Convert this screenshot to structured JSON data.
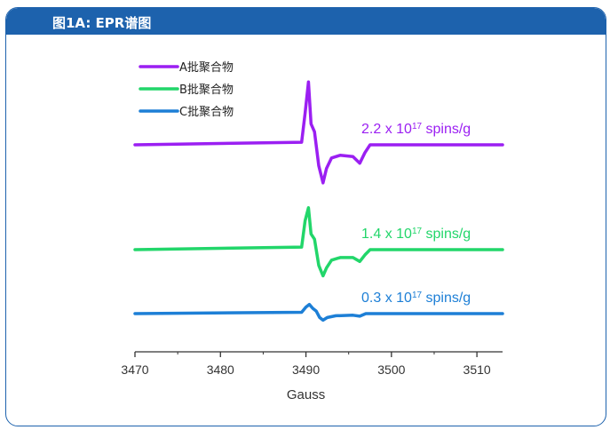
{
  "panel": {
    "title": "图1A: EPR谱图"
  },
  "colors": {
    "header": "#1d62ad",
    "axis": "#333333",
    "tick_text": "#333333"
  },
  "chart_data": {
    "type": "line",
    "title": "",
    "xlabel": "Gauss",
    "ylabel": "",
    "xlim": [
      3470,
      3513
    ],
    "xticks": [
      3470,
      3480,
      3490,
      3500,
      3510
    ],
    "xtick_labels": [
      "3470",
      "3480",
      "3490",
      "3500",
      "3510"
    ],
    "legend_position": "top-left",
    "series": [
      {
        "name": "A批聚合物",
        "color": "#9b1ff2",
        "annotation": "2.2 x 10^17 spins/g",
        "annotation_base": "2.2 x 10",
        "annotation_exp": "17",
        "annotation_unit": " spins/g",
        "x": [
          3470,
          3489.5,
          3489.9,
          3490.3,
          3490.6,
          3491.0,
          3491.5,
          3492.0,
          3492.4,
          3493.0,
          3494.0,
          3495.5,
          3496.3,
          3496.9,
          3497.5,
          3513
        ],
        "y": [
          0,
          1,
          12,
          24,
          8,
          5,
          -8,
          -14.5,
          -9,
          -5,
          -4,
          -4.5,
          -7,
          -3,
          0,
          0
        ]
      },
      {
        "name": "B批聚合物",
        "color": "#22d66a",
        "annotation": "1.4 x 10^17 spins/g",
        "annotation_base": "1.4 x 10",
        "annotation_exp": "17",
        "annotation_unit": " spins/g",
        "x": [
          3470,
          3489.5,
          3489.9,
          3490.3,
          3490.6,
          3491.0,
          3491.5,
          3492.0,
          3492.4,
          3493.0,
          3494.0,
          3495.5,
          3496.3,
          3496.9,
          3497.5,
          3513
        ],
        "y": [
          0,
          1,
          11,
          16,
          6,
          4,
          -6,
          -10,
          -7,
          -4,
          -3,
          -3,
          -4.5,
          -2,
          0,
          0
        ]
      },
      {
        "name": "C批聚合物",
        "color": "#1d7fd6",
        "annotation": "0.3 x 10^17 spins/g",
        "annotation_base": "0.3 x 10",
        "annotation_exp": "17",
        "annotation_unit": " spins/g",
        "x": [
          3470,
          3489.5,
          3490.0,
          3490.4,
          3490.8,
          3491.2,
          3491.6,
          3492.0,
          3492.5,
          3493.5,
          3495.5,
          3496.3,
          3497.0,
          3513
        ],
        "y": [
          0,
          0.5,
          2.5,
          3.5,
          2,
          1,
          -1.5,
          -2.5,
          -1.5,
          -0.8,
          -0.6,
          -1,
          0,
          0
        ]
      }
    ]
  }
}
